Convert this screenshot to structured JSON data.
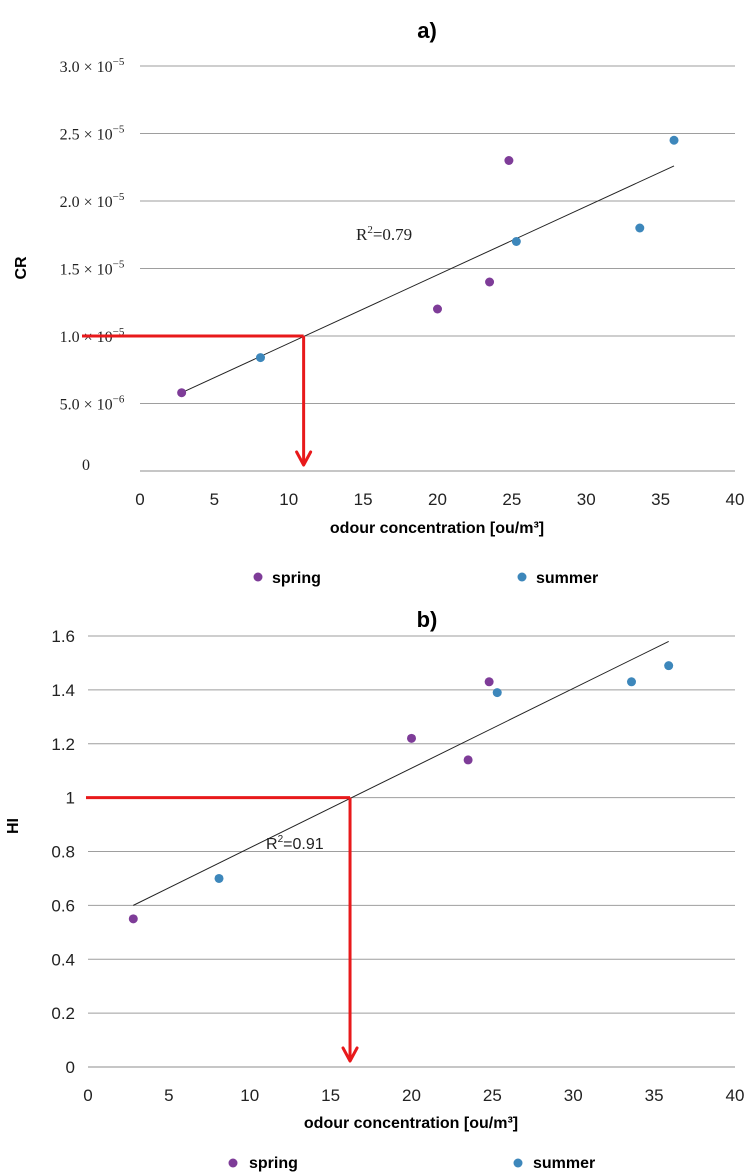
{
  "chart_data": [
    {
      "type": "scatter",
      "title": "a)",
      "xlabel": "odour concentration [ou/m³]",
      "ylabel": "CR",
      "xlim": [
        0,
        40
      ],
      "ylim": [
        0,
        3e-05
      ],
      "x_ticks": [
        0,
        5,
        10,
        15,
        20,
        25,
        30,
        35,
        40
      ],
      "x_tick_labels": [
        "0",
        "5",
        "10",
        "15",
        "20",
        "25",
        "30",
        "35",
        "40"
      ],
      "y_ticks": [
        0,
        5e-06,
        1e-05,
        1.5e-05,
        2e-05,
        2.5e-05,
        3e-05
      ],
      "y_tick_labels": [
        {
          "mantissa": "0",
          "exponent": ""
        },
        {
          "mantissa": "5.0 × 10",
          "exponent": "−6"
        },
        {
          "mantissa": "1.0 × 10",
          "exponent": "−5"
        },
        {
          "mantissa": "1.5 × 10",
          "exponent": "−5"
        },
        {
          "mantissa": "2.0 × 10",
          "exponent": "−5"
        },
        {
          "mantissa": "2.5 × 10",
          "exponent": "−5"
        },
        {
          "mantissa": "3.0 × 10",
          "exponent": "−5"
        }
      ],
      "grid": true,
      "legend_position": "bottom",
      "series": [
        {
          "name": "spring",
          "color": "#7e3c98",
          "x": [
            2.8,
            20.0,
            23.5,
            24.8
          ],
          "y": [
            5.8e-06,
            1.2e-05,
            1.4e-05,
            2.3e-05
          ]
        },
        {
          "name": "summer",
          "color": "#3d87bb",
          "x": [
            8.1,
            25.3,
            33.6,
            35.9
          ],
          "y": [
            8.4e-06,
            1.7e-05,
            1.8e-05,
            2.45e-05
          ]
        }
      ],
      "trendline": {
        "x": [
          2.8,
          35.9
        ],
        "y": [
          5.8e-06,
          2.26e-05
        ],
        "r2_prefix": "R",
        "r2_sup": "2",
        "r2_value": "=0.79"
      },
      "threshold": {
        "y": 1e-05,
        "x": 11.0,
        "color": "#e8191b"
      }
    },
    {
      "type": "scatter",
      "title": "b)",
      "xlabel": "odour concentration [ou/m³]",
      "ylabel": "HI",
      "xlim": [
        0,
        40
      ],
      "ylim": [
        0,
        1.6
      ],
      "x_ticks": [
        0,
        5,
        10,
        15,
        20,
        25,
        30,
        35,
        40
      ],
      "x_tick_labels": [
        "0",
        "5",
        "10",
        "15",
        "20",
        "25",
        "30",
        "35",
        "40"
      ],
      "y_ticks": [
        0,
        0.2,
        0.4,
        0.6,
        0.8,
        1,
        1.2,
        1.4,
        1.6
      ],
      "y_tick_labels": [
        "0",
        "0.2",
        "0.4",
        "0.6",
        "0.8",
        "1",
        "1.2",
        "1.4",
        "1.6"
      ],
      "grid": true,
      "legend_position": "bottom",
      "series": [
        {
          "name": "spring",
          "color": "#7e3c98",
          "x": [
            2.8,
            20.0,
            23.5,
            24.8
          ],
          "y": [
            0.55,
            1.22,
            1.14,
            1.43
          ]
        },
        {
          "name": "summer",
          "color": "#3d87bb",
          "x": [
            8.1,
            25.3,
            33.6,
            35.9
          ],
          "y": [
            0.7,
            1.39,
            1.43,
            1.49
          ]
        }
      ],
      "trendline": {
        "x": [
          2.8,
          35.9
        ],
        "y": [
          0.6,
          1.58
        ],
        "r2_prefix": "R",
        "r2_sup": "2",
        "r2_value": "=0.91"
      },
      "threshold": {
        "y": 1,
        "x": 16.2,
        "color": "#e8191b"
      }
    }
  ]
}
